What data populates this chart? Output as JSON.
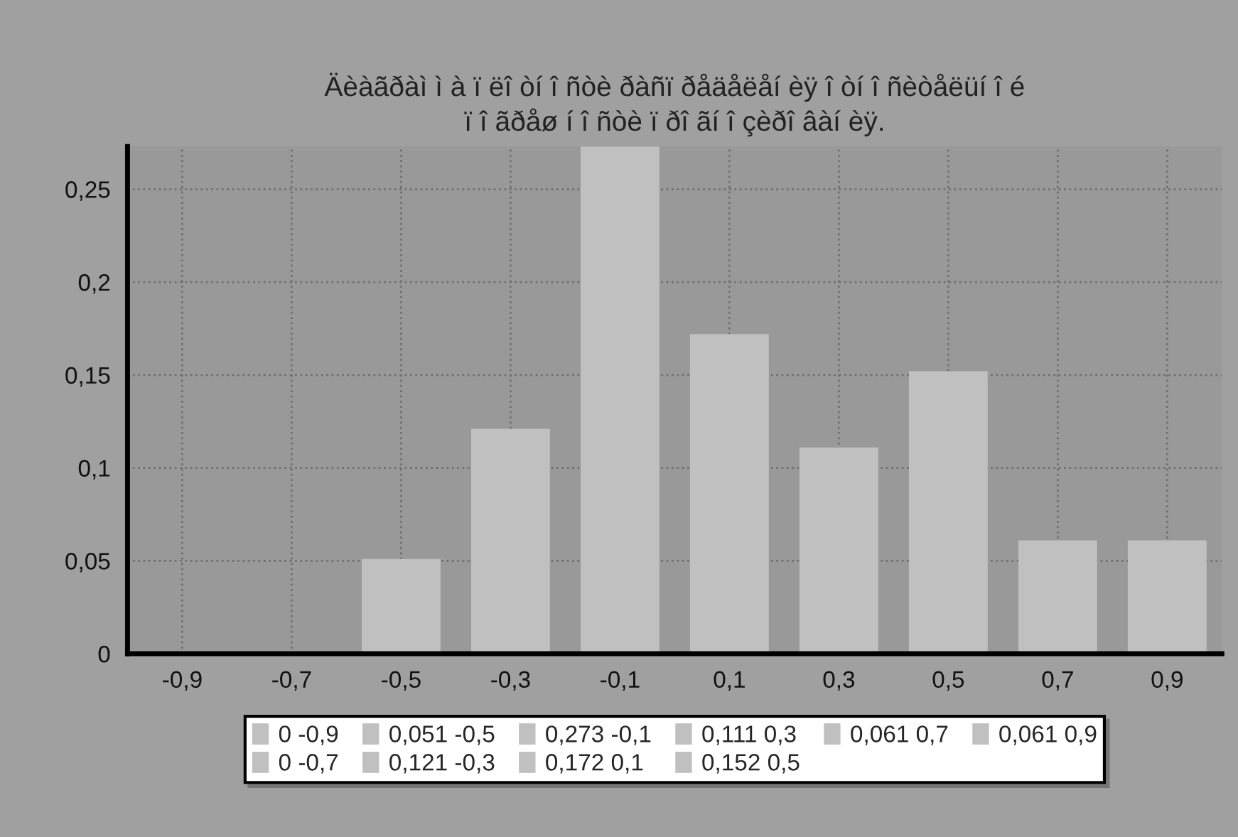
{
  "chart_data": {
    "type": "bar",
    "title": "Äèàãðàì ì à ï ëî òí î ñòè ðàñï ðåäåëåí èÿ î òí î ñèòåëüí î é\nï î ãðåø í î ñòè ï ðî ãí î çèðî âàí èÿ.",
    "categories": [
      "-0,9",
      "-0,7",
      "-0,5",
      "-0,3",
      "-0,1",
      "0,1",
      "0,3",
      "0,5",
      "0,7",
      "0,9"
    ],
    "series": [
      {
        "name": "0 -0,9",
        "color": "#c0c0c0",
        "values": [
          0,
          null,
          null,
          null,
          null,
          null,
          null,
          null,
          null,
          null
        ]
      },
      {
        "name": "0 -0,7",
        "color": "#c0c0c0",
        "values": [
          null,
          0,
          null,
          null,
          null,
          null,
          null,
          null,
          null,
          null
        ]
      },
      {
        "name": "0,051 -0,5",
        "color": "#c0c0c0",
        "values": [
          null,
          null,
          0.051,
          null,
          null,
          null,
          null,
          null,
          null,
          null
        ]
      },
      {
        "name": "0,121 -0,3",
        "color": "#c0c0c0",
        "values": [
          null,
          null,
          null,
          0.121,
          null,
          null,
          null,
          null,
          null,
          null
        ]
      },
      {
        "name": "0,273 -0,1",
        "color": "#c0c0c0",
        "values": [
          null,
          null,
          null,
          null,
          0.273,
          null,
          null,
          null,
          null,
          null
        ]
      },
      {
        "name": "0,172 0,1",
        "color": "#c0c0c0",
        "values": [
          null,
          null,
          null,
          null,
          null,
          0.172,
          null,
          null,
          null,
          null
        ]
      },
      {
        "name": "0,111 0,3",
        "color": "#c0c0c0",
        "values": [
          null,
          null,
          null,
          null,
          null,
          null,
          0.111,
          null,
          null,
          null
        ]
      },
      {
        "name": "0,152 0,5",
        "color": "#c0c0c0",
        "values": [
          null,
          null,
          null,
          null,
          null,
          null,
          null,
          0.152,
          null,
          null
        ]
      },
      {
        "name": "0,061 0,7",
        "color": "#c0c0c0",
        "values": [
          null,
          null,
          null,
          null,
          null,
          null,
          null,
          null,
          0.061,
          null
        ]
      },
      {
        "name": "0,061 0,9",
        "color": "#c0c0c0",
        "values": [
          null,
          null,
          null,
          null,
          null,
          null,
          null,
          null,
          null,
          0.061
        ]
      }
    ],
    "ylim": [
      0,
      0.273
    ],
    "yticks": [
      0,
      {
        "value": 0.05,
        "label": "0,05"
      },
      {
        "value": 0.1,
        "label": "0,1"
      },
      {
        "value": 0.15,
        "label": "0,15"
      },
      {
        "value": 0.2,
        "label": "0,2"
      },
      {
        "value": 0.25,
        "label": "0,25"
      }
    ],
    "grid": true,
    "legend": "bottom"
  }
}
